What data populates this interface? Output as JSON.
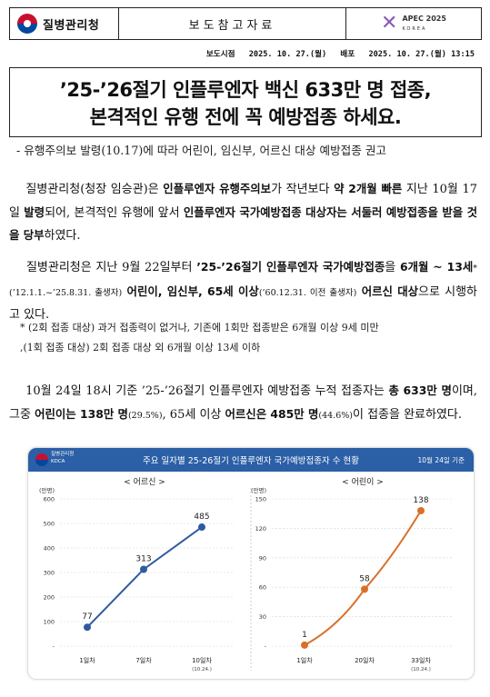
{
  "header": {
    "agency": "질병관리청",
    "doc_type": "보도참고자료",
    "apec_line1": "APEC 2025",
    "apec_line2": "KOREA"
  },
  "dateline": {
    "release_label": "보도시점",
    "release_value": "2025. 10. 27.(월)",
    "dist_label": "배포",
    "dist_value": "2025. 10. 27.(월) 13:15"
  },
  "title": {
    "line1": "’25-’26절기 인플루엔자 백신 633만 명 접종,",
    "line2": "본격적인 유행 전에 꼭 예방접종 하세요.",
    "subtitle": "- 유행주의보 발령(10.17)에 따라 어린이, 임신부, 어르신 대상 예방접종 권고"
  },
  "p1": {
    "s1": "질병관리청(청장 임승관)은 ",
    "b1": "인플루엔자 유행주의보",
    "s2": "가 작년보다 ",
    "b2": "약 2개월 빠른",
    "s3": " 지난 10월 17일 ",
    "b3": "발령",
    "s4": "되어, 본격적인 유행에 앞서 ",
    "b4": "인플루엔자 국가예방접종 대상자는 서둘러 예방접종을 받을 것을 당부",
    "s5": "하였다."
  },
  "p2": {
    "s1": "질병관리청은 지난 9월 22일부터 ",
    "b1": "’25-’26절기 인플루엔자 국가예방접종",
    "s2": "을 ",
    "b2": "6개월 ~ 13세",
    "sm1": "*(’12.1.1.~’25.8.31. 출생자)",
    "b3": " 어린이, 임신부, 65세 이상",
    "sm2": "(’60.12.31. 이전 출생자)",
    "b4": " 어르신 대상",
    "s3": "으로 시행하고 있다."
  },
  "notes": [
    "* (2회 접종 대상) 과거 접종력이 없거나, 기존에 1회만 접종받은 6개월 이상 9세 미만",
    ",(1회 접종 대상) 2회 접종 대상 외 6개월 이상 13세 이하"
  ],
  "p3": {
    "s1": "10월 24일 18시 기준 ’25-’26절기 인플루엔자 예방접종 누적 접종자는 ",
    "b1": "총 633만 명",
    "s2": "이며, 그중 ",
    "b2": "어린이는 138만 명",
    "sm1": "(29.5%)",
    "s3": ", 65세 이상 ",
    "b3": "어르신은 485만 명",
    "sm2": "(44.6%)",
    "s4": "이 접종을 완료하였다."
  },
  "chart_panel": {
    "agency_ko": "질병관리청",
    "agency_en": "KDCA",
    "title": "주요 일자별 25-26절기 인플루엔자 국가예방접종자 수 현황",
    "date": "10월 24일 기준"
  },
  "chart_data": [
    {
      "type": "line",
      "title": "< 어르신 >",
      "ylabel": "(만명)",
      "categories": [
        "1일차",
        "7일차",
        "10일차"
      ],
      "category_notes": [
        "",
        "",
        "(10.24.)"
      ],
      "values": [
        77,
        313,
        485
      ],
      "ylim": [
        0,
        600
      ],
      "yticks": [
        "-",
        "100",
        "200",
        "300",
        "400",
        "500",
        "600"
      ],
      "color": "#2f5aa0"
    },
    {
      "type": "line",
      "title": "< 어린이 >",
      "ylabel": "(만명)",
      "categories": [
        "1일차",
        "20일차",
        "33일차"
      ],
      "category_notes": [
        "",
        "",
        "(10.24.)"
      ],
      "values": [
        1,
        58,
        138
      ],
      "ylim": [
        0,
        150
      ],
      "yticks": [
        "-",
        "30",
        "60",
        "90",
        "120",
        "150"
      ],
      "color": "#d9702a"
    }
  ]
}
